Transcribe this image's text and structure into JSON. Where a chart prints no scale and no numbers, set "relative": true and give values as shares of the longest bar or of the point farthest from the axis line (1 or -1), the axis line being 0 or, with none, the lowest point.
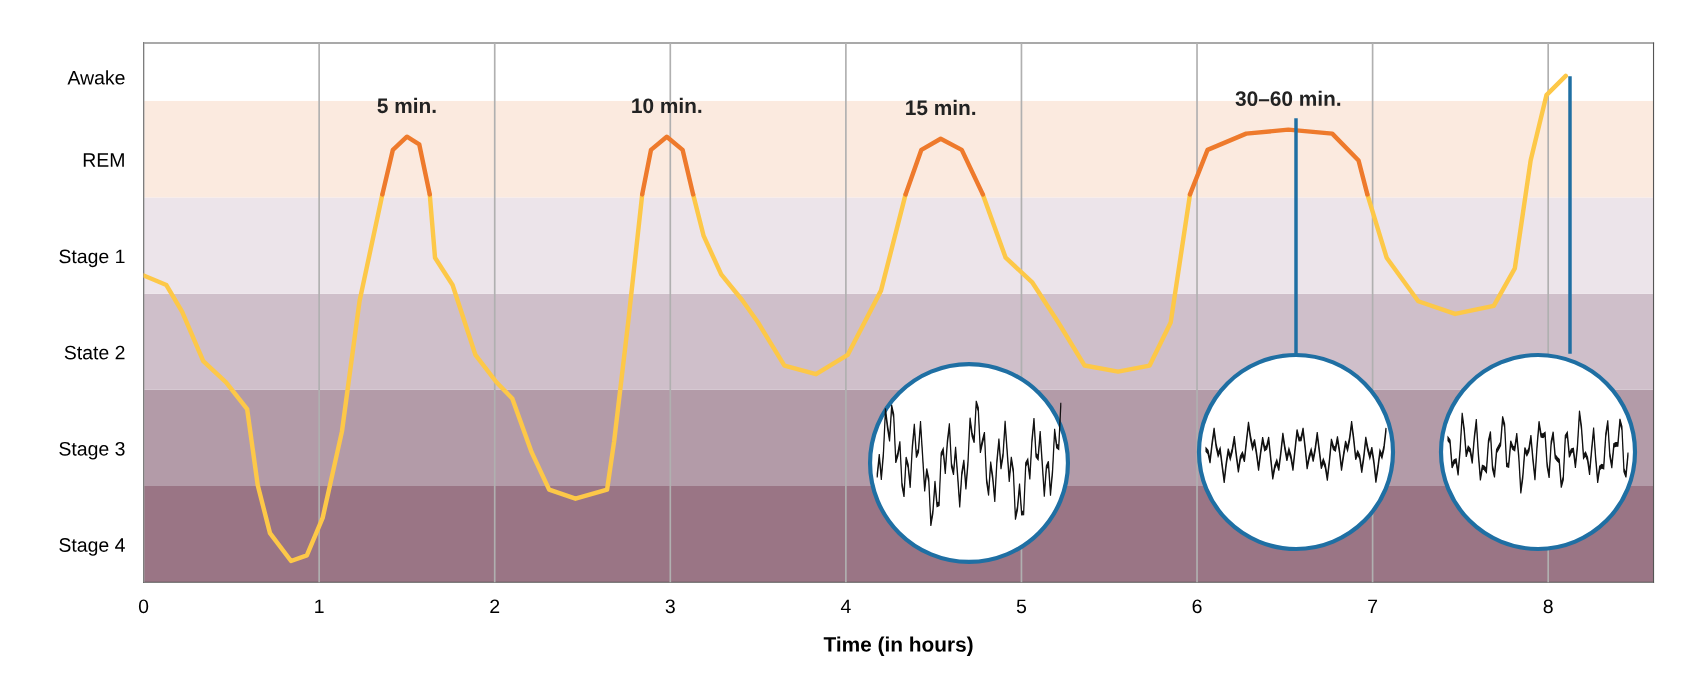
{
  "chart_data": {
    "type": "line",
    "xlabel": "Time (in hours)",
    "relative": true,
    "xlim": [
      0,
      8.6
    ],
    "xticks": [
      0,
      1,
      2,
      3,
      4,
      5,
      6,
      7,
      8
    ],
    "grid": "x",
    "line_style": "solid",
    "marker": "none",
    "bands": [
      {
        "axis": "y",
        "from": 0,
        "to": 0.19,
        "color": "#9a7585",
        "label": "Stage 4"
      },
      {
        "axis": "y",
        "from": 0.19,
        "to": 0.38,
        "color": "#b39ba8",
        "label": "Stage 3"
      },
      {
        "axis": "y",
        "from": 0.38,
        "to": 0.57,
        "color": "#cfbfca",
        "label": "State 2"
      },
      {
        "axis": "y",
        "from": 0.57,
        "to": 0.76,
        "color": "#ece4ea",
        "label": "Stage 1"
      },
      {
        "axis": "y",
        "from": 0.76,
        "to": 0.951,
        "color": "#fbeadf",
        "label": "REM"
      },
      {
        "axis": "y",
        "from": 0.951,
        "to": 1.065,
        "color": "#ffffff",
        "label": "Awake"
      }
    ],
    "x": [
      0,
      0.13,
      0.22,
      0.34,
      0.47,
      0.59,
      0.65,
      0.72,
      0.84,
      0.93,
      1.02,
      1.13,
      1.23,
      1.36,
      1.42,
      1.5,
      1.57,
      1.63,
      1.66,
      1.76,
      1.89,
      2.01,
      2.1,
      2.21,
      2.31,
      2.46,
      2.64,
      2.68,
      2.76,
      2.84,
      2.89,
      2.98,
      3.07,
      3.13,
      3.19,
      3.29,
      3.41,
      3.5,
      3.65,
      3.83,
      4.01,
      4.2,
      4.34,
      4.43,
      4.54,
      4.66,
      4.78,
      4.91,
      5.06,
      5.21,
      5.36,
      5.55,
      5.73,
      5.85,
      5.96,
      6.06,
      6.28,
      6.52,
      6.77,
      6.92,
      6.97,
      7.08,
      7.26,
      7.47,
      7.69,
      7.81,
      7.9,
      7.99,
      8.1
    ],
    "series": [
      {
        "color": "#fdc848",
        "values": [
          0.606,
          0.587,
          0.534,
          0.437,
          0.395,
          0.342,
          0.192,
          0.097,
          0.042,
          0.053,
          0.127,
          0.298,
          0.555,
          0.766,
          null,
          null,
          null,
          0.766,
          0.641,
          0.587,
          0.449,
          0.395,
          0.363,
          0.257,
          0.183,
          0.165,
          0.183,
          0.278,
          0.513,
          0.766,
          null,
          null,
          null,
          0.766,
          0.684,
          0.608,
          0.557,
          0.513,
          0.428,
          0.411,
          0.449,
          0.576,
          0.766,
          null,
          null,
          null,
          0.766,
          0.641,
          0.593,
          0.513,
          0.428,
          0.416,
          0.428,
          0.513,
          0.766,
          null,
          null,
          null,
          null,
          null,
          0.766,
          0.641,
          0.555,
          0.53,
          0.546,
          0.62,
          0.833,
          0.962,
          1
        ]
      },
      {
        "color": "#ee7a2c",
        "values": [
          null,
          null,
          null,
          null,
          null,
          null,
          null,
          null,
          null,
          null,
          null,
          null,
          null,
          0.766,
          0.854,
          0.88,
          0.865,
          0.766,
          null,
          null,
          null,
          null,
          null,
          null,
          null,
          null,
          null,
          null,
          null,
          0.766,
          0.854,
          0.88,
          0.854,
          0.766,
          null,
          null,
          null,
          null,
          null,
          null,
          null,
          null,
          0.766,
          0.854,
          0.876,
          0.854,
          0.766,
          null,
          null,
          null,
          null,
          null,
          null,
          null,
          0.766,
          0.854,
          0.886,
          0.894,
          0.886,
          0.833,
          0.766,
          null,
          null,
          null,
          null,
          null,
          null,
          null,
          null
        ]
      }
    ],
    "annotations": [
      {
        "text": "5 min.",
        "x": 1.5,
        "y": 0.88
      },
      {
        "text": "10 min.",
        "x": 2.98,
        "y": 0.88
      },
      {
        "text": "15 min.",
        "x": 4.54,
        "y": 0.876
      },
      {
        "text": "30–60 min.",
        "x": 6.52,
        "y": 0.894
      }
    ]
  }
}
